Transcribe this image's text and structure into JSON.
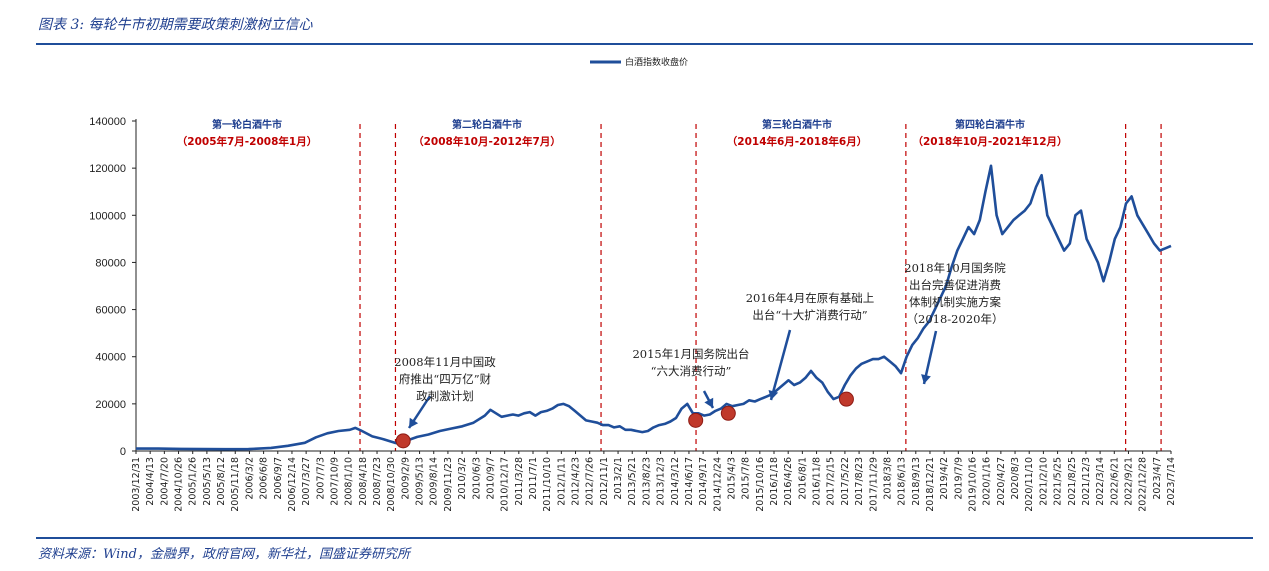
{
  "figure": {
    "title": "图表 3: 每轮牛市初期需要政策刺激树立信心",
    "source": "资料来源：Wind，金融界，政府官网，新华社，国盛证券研究所"
  },
  "colors": {
    "line": "#1f4e9a",
    "divider": "#c00000",
    "marker": "#c0392b",
    "heading": "#1f3f8f"
  },
  "chart_data": {
    "type": "line",
    "title": "",
    "xlabel": "",
    "ylabel": "",
    "legend": "top-center",
    "grid": false,
    "ylim": [
      0,
      140000
    ],
    "yticks": [
      0,
      20000,
      40000,
      60000,
      80000,
      100000,
      120000,
      140000
    ],
    "ytick_labels": [
      "0",
      "20000",
      "40000",
      "60000",
      "80000",
      "100000",
      "120000",
      "140000"
    ],
    "xticks": [
      "2003/12/31",
      "2004/4/13",
      "2004/7/20",
      "2004/10/26",
      "2005/1/26",
      "2005/5/13",
      "2005/8/12",
      "2005/11/18",
      "2006/3/2",
      "2006/6/8",
      "2006/9/7",
      "2006/12/14",
      "2007/3/27",
      "2007/7/3",
      "2007/10/9",
      "2008/1/10",
      "2008/4/18",
      "2008/7/23",
      "2008/10/30",
      "2009/2/9",
      "2009/5/13",
      "2009/8/14",
      "2009/11/23",
      "2010/3/2",
      "2010/6/3",
      "2010/9/7",
      "2010/12/17",
      "2011/3/28",
      "2011/7/1",
      "2011/10/10",
      "2012/1/11",
      "2012/4/23",
      "2012/7/26",
      "2012/11/1",
      "2013/2/1",
      "2013/5/21",
      "2013/8/23",
      "2013/12/3",
      "2014/3/12",
      "2014/6/17",
      "2014/9/17",
      "2014/12/24",
      "2015/4/3",
      "2015/7/8",
      "2015/10/16",
      "2016/1/18",
      "2016/4/26",
      "2016/8/1",
      "2016/11/8",
      "2017/2/15",
      "2017/5/22",
      "2017/8/23",
      "2017/11/29",
      "2018/3/8",
      "2018/6/13",
      "2018/9/13",
      "2018/12/21",
      "2019/4/2",
      "2019/7/9",
      "2019/10/16",
      "2020/1/16",
      "2020/4/27",
      "2020/8/3",
      "2020/11/10",
      "2021/2/10",
      "2021/5/25",
      "2021/8/25",
      "2021/12/3",
      "2022/3/14",
      "2022/6/21",
      "2022/9/21",
      "2022/12/28",
      "2023/4/7",
      "2023/7/14"
    ],
    "series": [
      {
        "name": "白酒指数收盘价",
        "values": [
          [
            0,
            1000
          ],
          [
            4,
            1000
          ],
          [
            8,
            900
          ],
          [
            12,
            800
          ],
          [
            16,
            750
          ],
          [
            20,
            800
          ],
          [
            24,
            1300
          ],
          [
            27,
            2200
          ],
          [
            30,
            3500
          ],
          [
            32,
            5800
          ],
          [
            34,
            7500
          ],
          [
            36,
            8500
          ],
          [
            38,
            9000
          ],
          [
            39,
            9800
          ],
          [
            40,
            8700
          ],
          [
            42,
            6200
          ],
          [
            44,
            5000
          ],
          [
            46,
            3500
          ],
          [
            47,
            3000
          ],
          [
            48,
            4300
          ],
          [
            50,
            6000
          ],
          [
            52,
            7000
          ],
          [
            54,
            8500
          ],
          [
            56,
            9500
          ],
          [
            58,
            10500
          ],
          [
            60,
            12000
          ],
          [
            62,
            15000
          ],
          [
            63,
            17500
          ],
          [
            64,
            16000
          ],
          [
            65,
            14500
          ],
          [
            66,
            15000
          ],
          [
            67,
            15500
          ],
          [
            68,
            15000
          ],
          [
            69,
            16000
          ],
          [
            70,
            16500
          ],
          [
            71,
            15000
          ],
          [
            72,
            16500
          ],
          [
            73,
            17000
          ],
          [
            74,
            18000
          ],
          [
            75,
            19500
          ],
          [
            76,
            20000
          ],
          [
            77,
            19000
          ],
          [
            78,
            17000
          ],
          [
            79,
            15000
          ],
          [
            80,
            13000
          ],
          [
            81,
            12500
          ],
          [
            82,
            12000
          ],
          [
            83,
            11000
          ],
          [
            84,
            11000
          ],
          [
            85,
            10000
          ],
          [
            86,
            10500
          ],
          [
            87,
            9000
          ],
          [
            88,
            9000
          ],
          [
            89,
            8500
          ],
          [
            90,
            8000
          ],
          [
            91,
            8500
          ],
          [
            92,
            10000
          ],
          [
            93,
            11000
          ],
          [
            94,
            11500
          ],
          [
            95,
            12500
          ],
          [
            96,
            14000
          ],
          [
            97,
            18000
          ],
          [
            98,
            20000
          ],
          [
            99,
            16000
          ],
          [
            100,
            16000
          ],
          [
            101,
            15000
          ],
          [
            102,
            15500
          ],
          [
            103,
            17000
          ],
          [
            104,
            18000
          ],
          [
            105,
            20000
          ],
          [
            106,
            19000
          ],
          [
            107,
            19500
          ],
          [
            108,
            20000
          ],
          [
            109,
            21500
          ],
          [
            110,
            21000
          ],
          [
            111,
            22000
          ],
          [
            112,
            23000
          ],
          [
            113,
            24000
          ],
          [
            114,
            26000
          ],
          [
            115,
            28000
          ],
          [
            116,
            30000
          ],
          [
            117,
            28000
          ],
          [
            118,
            29000
          ],
          [
            119,
            31000
          ],
          [
            120,
            34000
          ],
          [
            121,
            31000
          ],
          [
            122,
            29000
          ],
          [
            123,
            25000
          ],
          [
            124,
            22000
          ],
          [
            125,
            23000
          ],
          [
            126,
            28000
          ],
          [
            127,
            32000
          ],
          [
            128,
            35000
          ],
          [
            129,
            37000
          ],
          [
            130,
            38000
          ],
          [
            131,
            39000
          ],
          [
            132,
            39000
          ],
          [
            133,
            40000
          ],
          [
            134,
            38000
          ],
          [
            135,
            36000
          ],
          [
            136,
            33000
          ],
          [
            137,
            40000
          ],
          [
            138,
            45000
          ],
          [
            139,
            48000
          ],
          [
            140,
            52000
          ],
          [
            141,
            55000
          ],
          [
            142,
            60000
          ],
          [
            143,
            65000
          ],
          [
            144,
            70000
          ],
          [
            145,
            78000
          ],
          [
            146,
            85000
          ],
          [
            147,
            90000
          ],
          [
            148,
            95000
          ],
          [
            149,
            92000
          ],
          [
            150,
            98000
          ],
          [
            151,
            110000
          ],
          [
            152,
            121000
          ],
          [
            153,
            100000
          ],
          [
            154,
            92000
          ],
          [
            155,
            95000
          ],
          [
            156,
            98000
          ],
          [
            157,
            100000
          ],
          [
            158,
            102000
          ],
          [
            159,
            105000
          ],
          [
            160,
            112000
          ],
          [
            161,
            117000
          ],
          [
            162,
            100000
          ],
          [
            163,
            95000
          ],
          [
            164,
            90000
          ],
          [
            165,
            85000
          ],
          [
            166,
            88000
          ],
          [
            167,
            100000
          ],
          [
            168,
            102000
          ],
          [
            169,
            90000
          ],
          [
            170,
            85000
          ],
          [
            171,
            80000
          ],
          [
            172,
            72000
          ],
          [
            173,
            80000
          ],
          [
            174,
            90000
          ],
          [
            175,
            95000
          ],
          [
            176,
            105000
          ],
          [
            177,
            108000
          ],
          [
            178,
            100000
          ],
          [
            179,
            96000
          ],
          [
            180,
            92000
          ],
          [
            181,
            88000
          ],
          [
            182,
            85000
          ],
          [
            183,
            86000
          ],
          [
            184,
            87000
          ]
        ]
      }
    ],
    "phases": [
      {
        "name": "第一轮白酒牛市",
        "range": "（2005年7月-2008年1月）"
      },
      {
        "name": "第二轮白酒牛市",
        "range": "（2008年10月-2012年7月）"
      },
      {
        "name": "第三轮白酒牛市",
        "range": "（2014年6月-2018年6月）"
      },
      {
        "name": "第四轮白酒牛市",
        "range": "（2018年10月-2021年12月）"
      }
    ],
    "annotations": [
      {
        "lines": [
          "2008年11月中国政",
          "府推出“四万亿”财",
          "政刺激计划"
        ]
      },
      {
        "lines": [
          "2015年1月国务院出台",
          "“六大消费行动”"
        ]
      },
      {
        "lines": [
          "2016年4月在原有基础上",
          "出台“十大扩消费行动”"
        ]
      },
      {
        "lines": [
          "2018年10月国务院",
          "出台完善促进消费",
          "体制机制实施方案",
          "（2018-2020年）"
        ]
      }
    ]
  }
}
